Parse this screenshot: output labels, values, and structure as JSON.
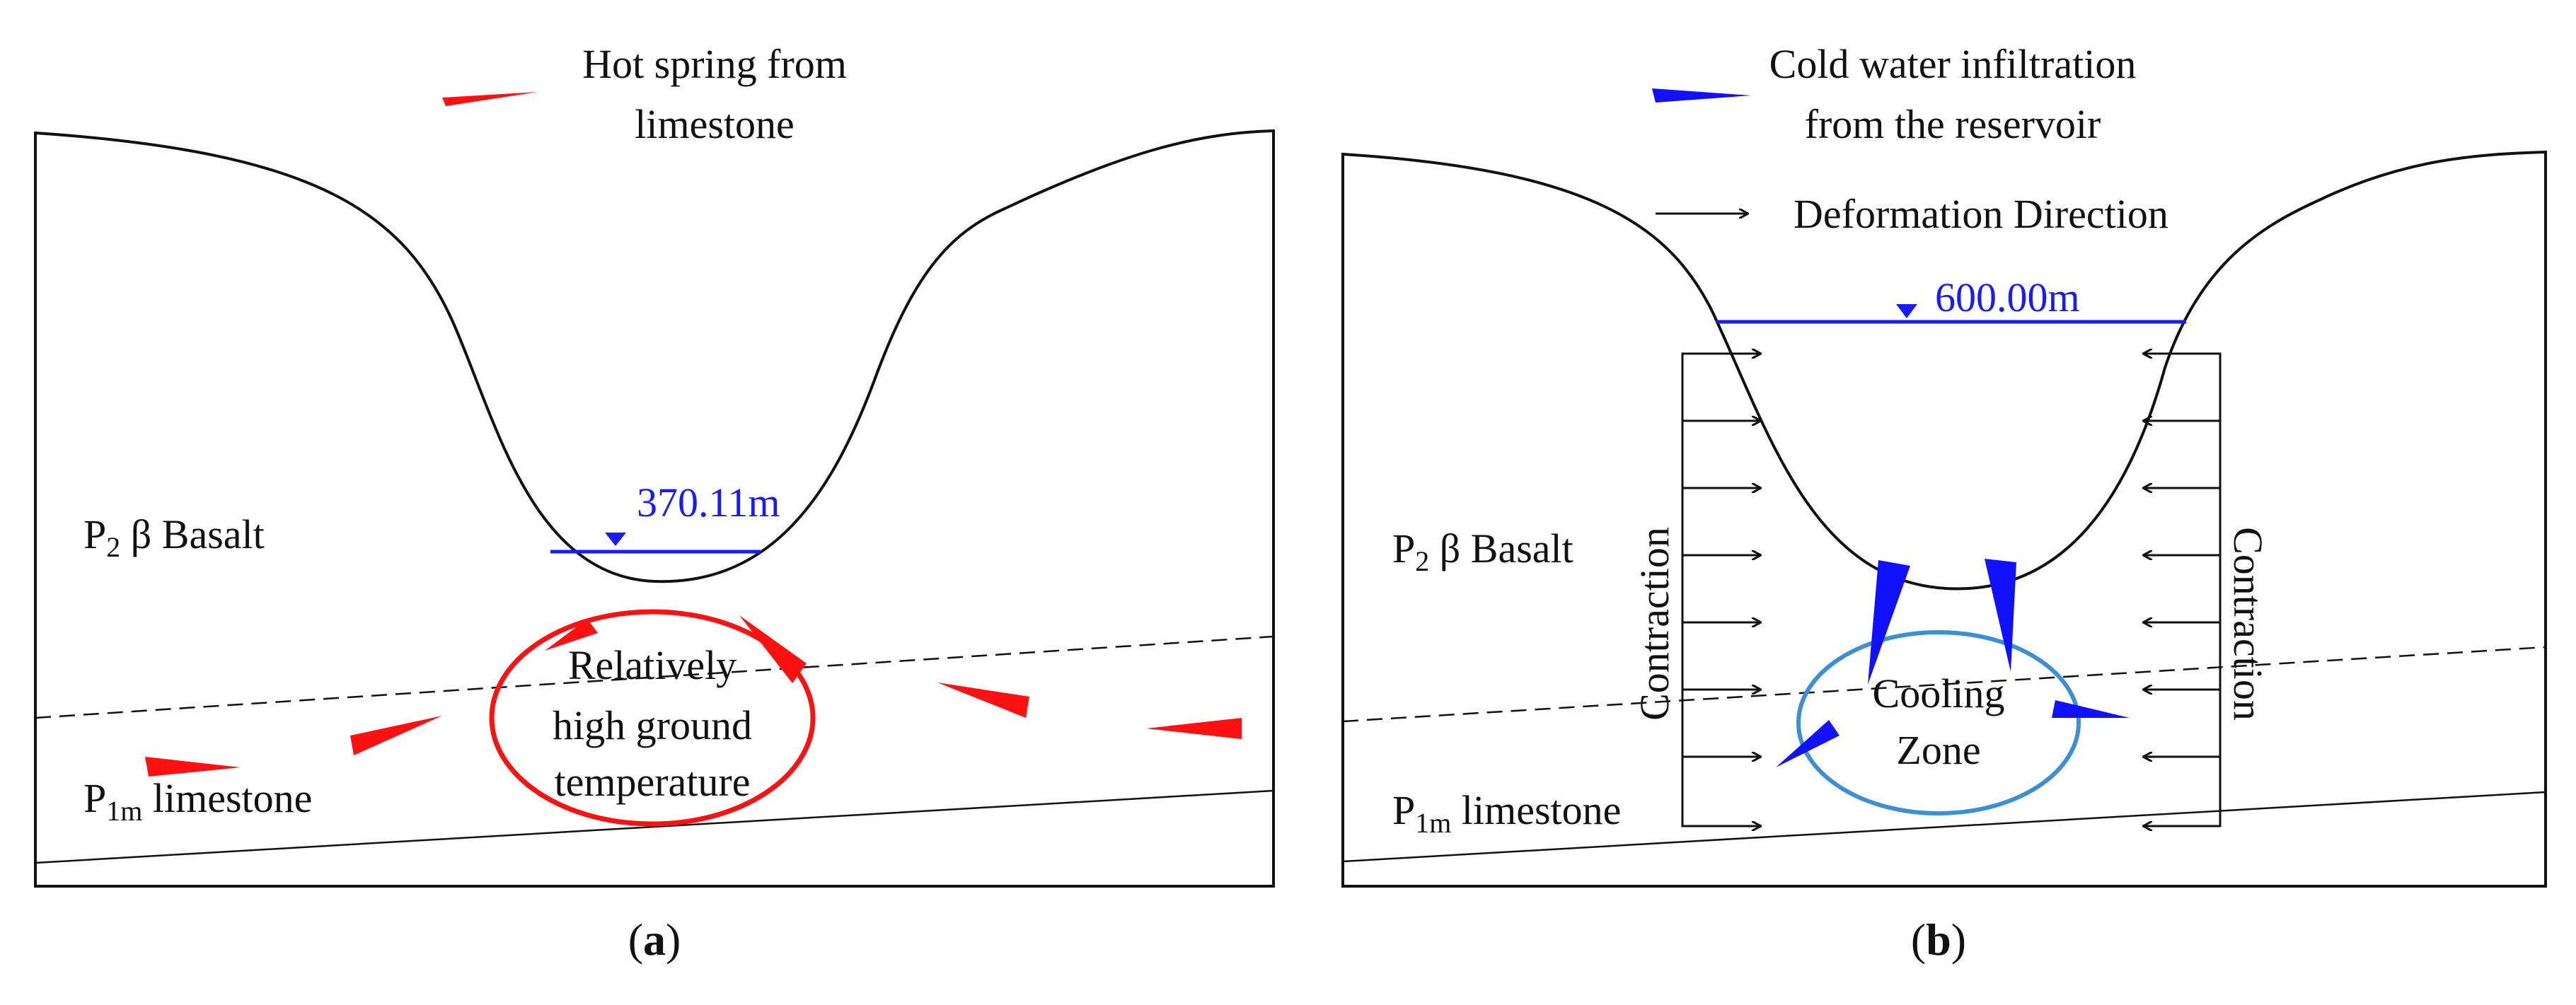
{
  "colors": {
    "outline": "#111111",
    "water": "#1a1aff",
    "hot": "#ff1111",
    "cold": "#1111ff",
    "cooling_zone": "#3a8fd6"
  },
  "panel_a": {
    "legend_hot": [
      "Hot spring from",
      "limestone"
    ],
    "water_level": "370.11m",
    "basalt_label": {
      "prefix": "P",
      "sub": "2",
      "rest": " β  Basalt"
    },
    "limestone_label": {
      "prefix": "P",
      "sub": "1m",
      "rest": " limestone"
    },
    "zone_text": [
      "Relatively",
      "high ground",
      "temperature"
    ],
    "caption": {
      "open": "(",
      "letter": "a",
      "close": ")"
    }
  },
  "panel_b": {
    "legend_cold": [
      "Cold water infiltration",
      "from the reservoir"
    ],
    "legend_deformation": "Deformation Direction",
    "water_level": "600.00m",
    "basalt_label": {
      "prefix": "P",
      "sub": "2",
      "rest": " β  Basalt"
    },
    "limestone_label": {
      "prefix": "P",
      "sub": "1m",
      "rest": " limestone"
    },
    "zone_text": [
      "Cooling",
      "Zone"
    ],
    "contraction_left": "Contraction",
    "contraction_right": "Contraction",
    "caption": {
      "open": "(",
      "letter": "b",
      "close": ")"
    }
  }
}
